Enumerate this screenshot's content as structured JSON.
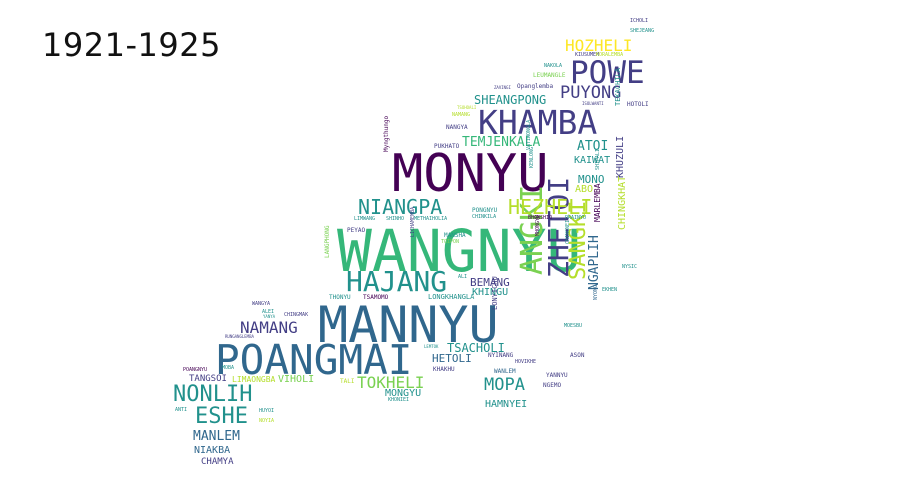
{
  "title": "1921-1925",
  "palette": {
    "c1": "#440154",
    "c2": "#433e85",
    "c3": "#30678d",
    "c4": "#21918c",
    "c5": "#35b779",
    "c6": "#7ad151",
    "c7": "#b5de2b",
    "c8": "#fde725"
  },
  "words": [
    {
      "text": "WANGNYU",
      "color": "#35b779"
    },
    {
      "text": "MONYU",
      "color": "#440154"
    },
    {
      "text": "MANNYU",
      "color": "#30678d"
    },
    {
      "text": "POANGMAI",
      "color": "#30678d"
    },
    {
      "text": "KHAMBA",
      "color": "#433e85"
    },
    {
      "text": "POWE",
      "color": "#433e85"
    },
    {
      "text": "HAJANG",
      "color": "#21918c"
    },
    {
      "text": "ANGKI",
      "color": "#7ad151"
    },
    {
      "text": "ZHETOI",
      "color": "#433e85"
    },
    {
      "text": "SANGKI",
      "color": "#b5de2b"
    },
    {
      "text": "NIANGPA",
      "color": "#21918c"
    },
    {
      "text": "HEZHELI",
      "color": "#b5de2b"
    },
    {
      "text": "NONLIH",
      "color": "#21918c"
    },
    {
      "text": "ESHE",
      "color": "#21918c"
    },
    {
      "text": "NAMANG",
      "color": "#433e85"
    },
    {
      "text": "HOZHELI",
      "color": "#fde725"
    },
    {
      "text": "PUYONG",
      "color": "#433e85"
    },
    {
      "text": "TEMJENKALA",
      "color": "#35b779"
    },
    {
      "text": "MOPA",
      "color": "#21918c"
    },
    {
      "text": "TOKHELI",
      "color": "#7ad151"
    },
    {
      "text": "MANLEM",
      "color": "#30678d"
    },
    {
      "text": "NGAPLIH",
      "color": "#30678d"
    },
    {
      "text": "SHEANGPONG",
      "color": "#21918c"
    },
    {
      "text": "ATOI",
      "color": "#21918c"
    },
    {
      "text": "MONO",
      "color": "#21918c"
    },
    {
      "text": "KHUZULI",
      "color": "#433e85"
    },
    {
      "text": "TSACHOLI",
      "color": "#21918c"
    },
    {
      "text": "HETOLI",
      "color": "#30678d"
    },
    {
      "text": "HAMNYEI",
      "color": "#21918c"
    },
    {
      "text": "MONGYU",
      "color": "#21918c"
    },
    {
      "text": "VIHOLI",
      "color": "#7ad151"
    },
    {
      "text": "TANGSOI",
      "color": "#433e85"
    },
    {
      "text": "NIAKBA",
      "color": "#30678d"
    },
    {
      "text": "CHAMYA",
      "color": "#433e85"
    },
    {
      "text": "BEMANG",
      "color": "#433e85"
    },
    {
      "text": "KHINGU",
      "color": "#21918c"
    },
    {
      "text": "KAIWAT",
      "color": "#21918c"
    },
    {
      "text": "ABO",
      "color": "#b5de2b"
    },
    {
      "text": "CHINGKHAT",
      "color": "#b5de2b"
    },
    {
      "text": "MARLEMBA",
      "color": "#440154"
    },
    {
      "text": "LIMAONGBA",
      "color": "#b5de2b"
    },
    {
      "text": "LONGKHANGLA",
      "color": "#21918c"
    },
    {
      "text": "LONYICHU",
      "color": "#433e85"
    },
    {
      "text": "NYINANG",
      "color": "#433e85"
    },
    {
      "text": "WANLEM",
      "color": "#30678d"
    },
    {
      "text": "YANNYU",
      "color": "#433e85"
    },
    {
      "text": "ASON",
      "color": "#433e85"
    },
    {
      "text": "NGEMO",
      "color": "#433e85"
    },
    {
      "text": "KHAKHU",
      "color": "#433e85"
    },
    {
      "text": "TALI",
      "color": "#b5de2b"
    },
    {
      "text": "THONYU",
      "color": "#21918c"
    },
    {
      "text": "TSAMOMO",
      "color": "#440154"
    },
    {
      "text": "PEYAO",
      "color": "#433e85"
    },
    {
      "text": "PONGNYU",
      "color": "#21918c"
    },
    {
      "text": "CHINKILA",
      "color": "#21918c"
    },
    {
      "text": "BHONSHIO",
      "color": "#440154"
    },
    {
      "text": "PRAINYU",
      "color": "#21918c"
    },
    {
      "text": "MANSHA",
      "color": "#21918c"
    },
    {
      "text": "TOIPON",
      "color": "#7ad151"
    },
    {
      "text": "LIMWANG",
      "color": "#21918c"
    },
    {
      "text": "SHINHO",
      "color": "#21918c"
    },
    {
      "text": "METHAIHOLIA",
      "color": "#21918c"
    },
    {
      "text": "PUKHATO",
      "color": "#433e85"
    },
    {
      "text": "NANGYA",
      "color": "#433e85"
    },
    {
      "text": "NAMANG",
      "color": "#b5de2b"
    },
    {
      "text": "TEKACHILA",
      "color": "#21918c"
    },
    {
      "text": "HOTOLI",
      "color": "#433e85"
    },
    {
      "text": "LEUMANGLE",
      "color": "#7ad151"
    },
    {
      "text": "Opanglemba",
      "color": "#433e85"
    },
    {
      "text": "KIUSUMEM",
      "color": "#433e85"
    },
    {
      "text": "KORALEMBA",
      "color": "#b5de2b"
    },
    {
      "text": "SHEJEANG",
      "color": "#21918c"
    },
    {
      "text": "ICHOLI",
      "color": "#433e85"
    },
    {
      "text": "NAKOLA",
      "color": "#21918c"
    },
    {
      "text": "ZAVINGI",
      "color": "#433e85"
    },
    {
      "text": "TSOHOALI",
      "color": "#b5de2b"
    },
    {
      "text": "ISOLWANTI",
      "color": "#433e85"
    },
    {
      "text": "WANGYA",
      "color": "#433e85"
    },
    {
      "text": "ALEI",
      "color": "#21918c"
    },
    {
      "text": "CHINGMAK",
      "color": "#433e85"
    },
    {
      "text": "POANGNYU",
      "color": "#440154"
    },
    {
      "text": "ANTI",
      "color": "#21918c"
    },
    {
      "text": "NOYIA",
      "color": "#b5de2b"
    },
    {
      "text": "NYONG",
      "color": "#30678d"
    },
    {
      "text": "HOVIKHE",
      "color": "#433e85"
    },
    {
      "text": "EKHEN",
      "color": "#21918c"
    },
    {
      "text": "NYSIC",
      "color": "#21918c"
    },
    {
      "text": "Myngthungo",
      "color": "#440154"
    },
    {
      "text": "LANGPHONG",
      "color": "#7ad151"
    },
    {
      "text": "VATIWONGLA",
      "color": "#21918c"
    },
    {
      "text": "KENLONG",
      "color": "#21918c"
    },
    {
      "text": "CHINGNEI",
      "color": "#21918c"
    },
    {
      "text": "MHONGYU",
      "color": "#440154"
    },
    {
      "text": "LICHAMEMBA",
      "color": "#433e85"
    },
    {
      "text": "SHIPALI",
      "color": "#21918c"
    },
    {
      "text": "ALI",
      "color": "#21918c"
    },
    {
      "text": "MOESBU",
      "color": "#21918c"
    },
    {
      "text": "LEMTOK",
      "color": "#21918c"
    },
    {
      "text": "KHONIEI",
      "color": "#21918c"
    },
    {
      "text": "MOBA",
      "color": "#21918c"
    },
    {
      "text": "HUYOI",
      "color": "#21918c"
    },
    {
      "text": "RUNGANGLEMBA",
      "color": "#433e85"
    },
    {
      "text": "YANYA",
      "color": "#21918c"
    }
  ]
}
